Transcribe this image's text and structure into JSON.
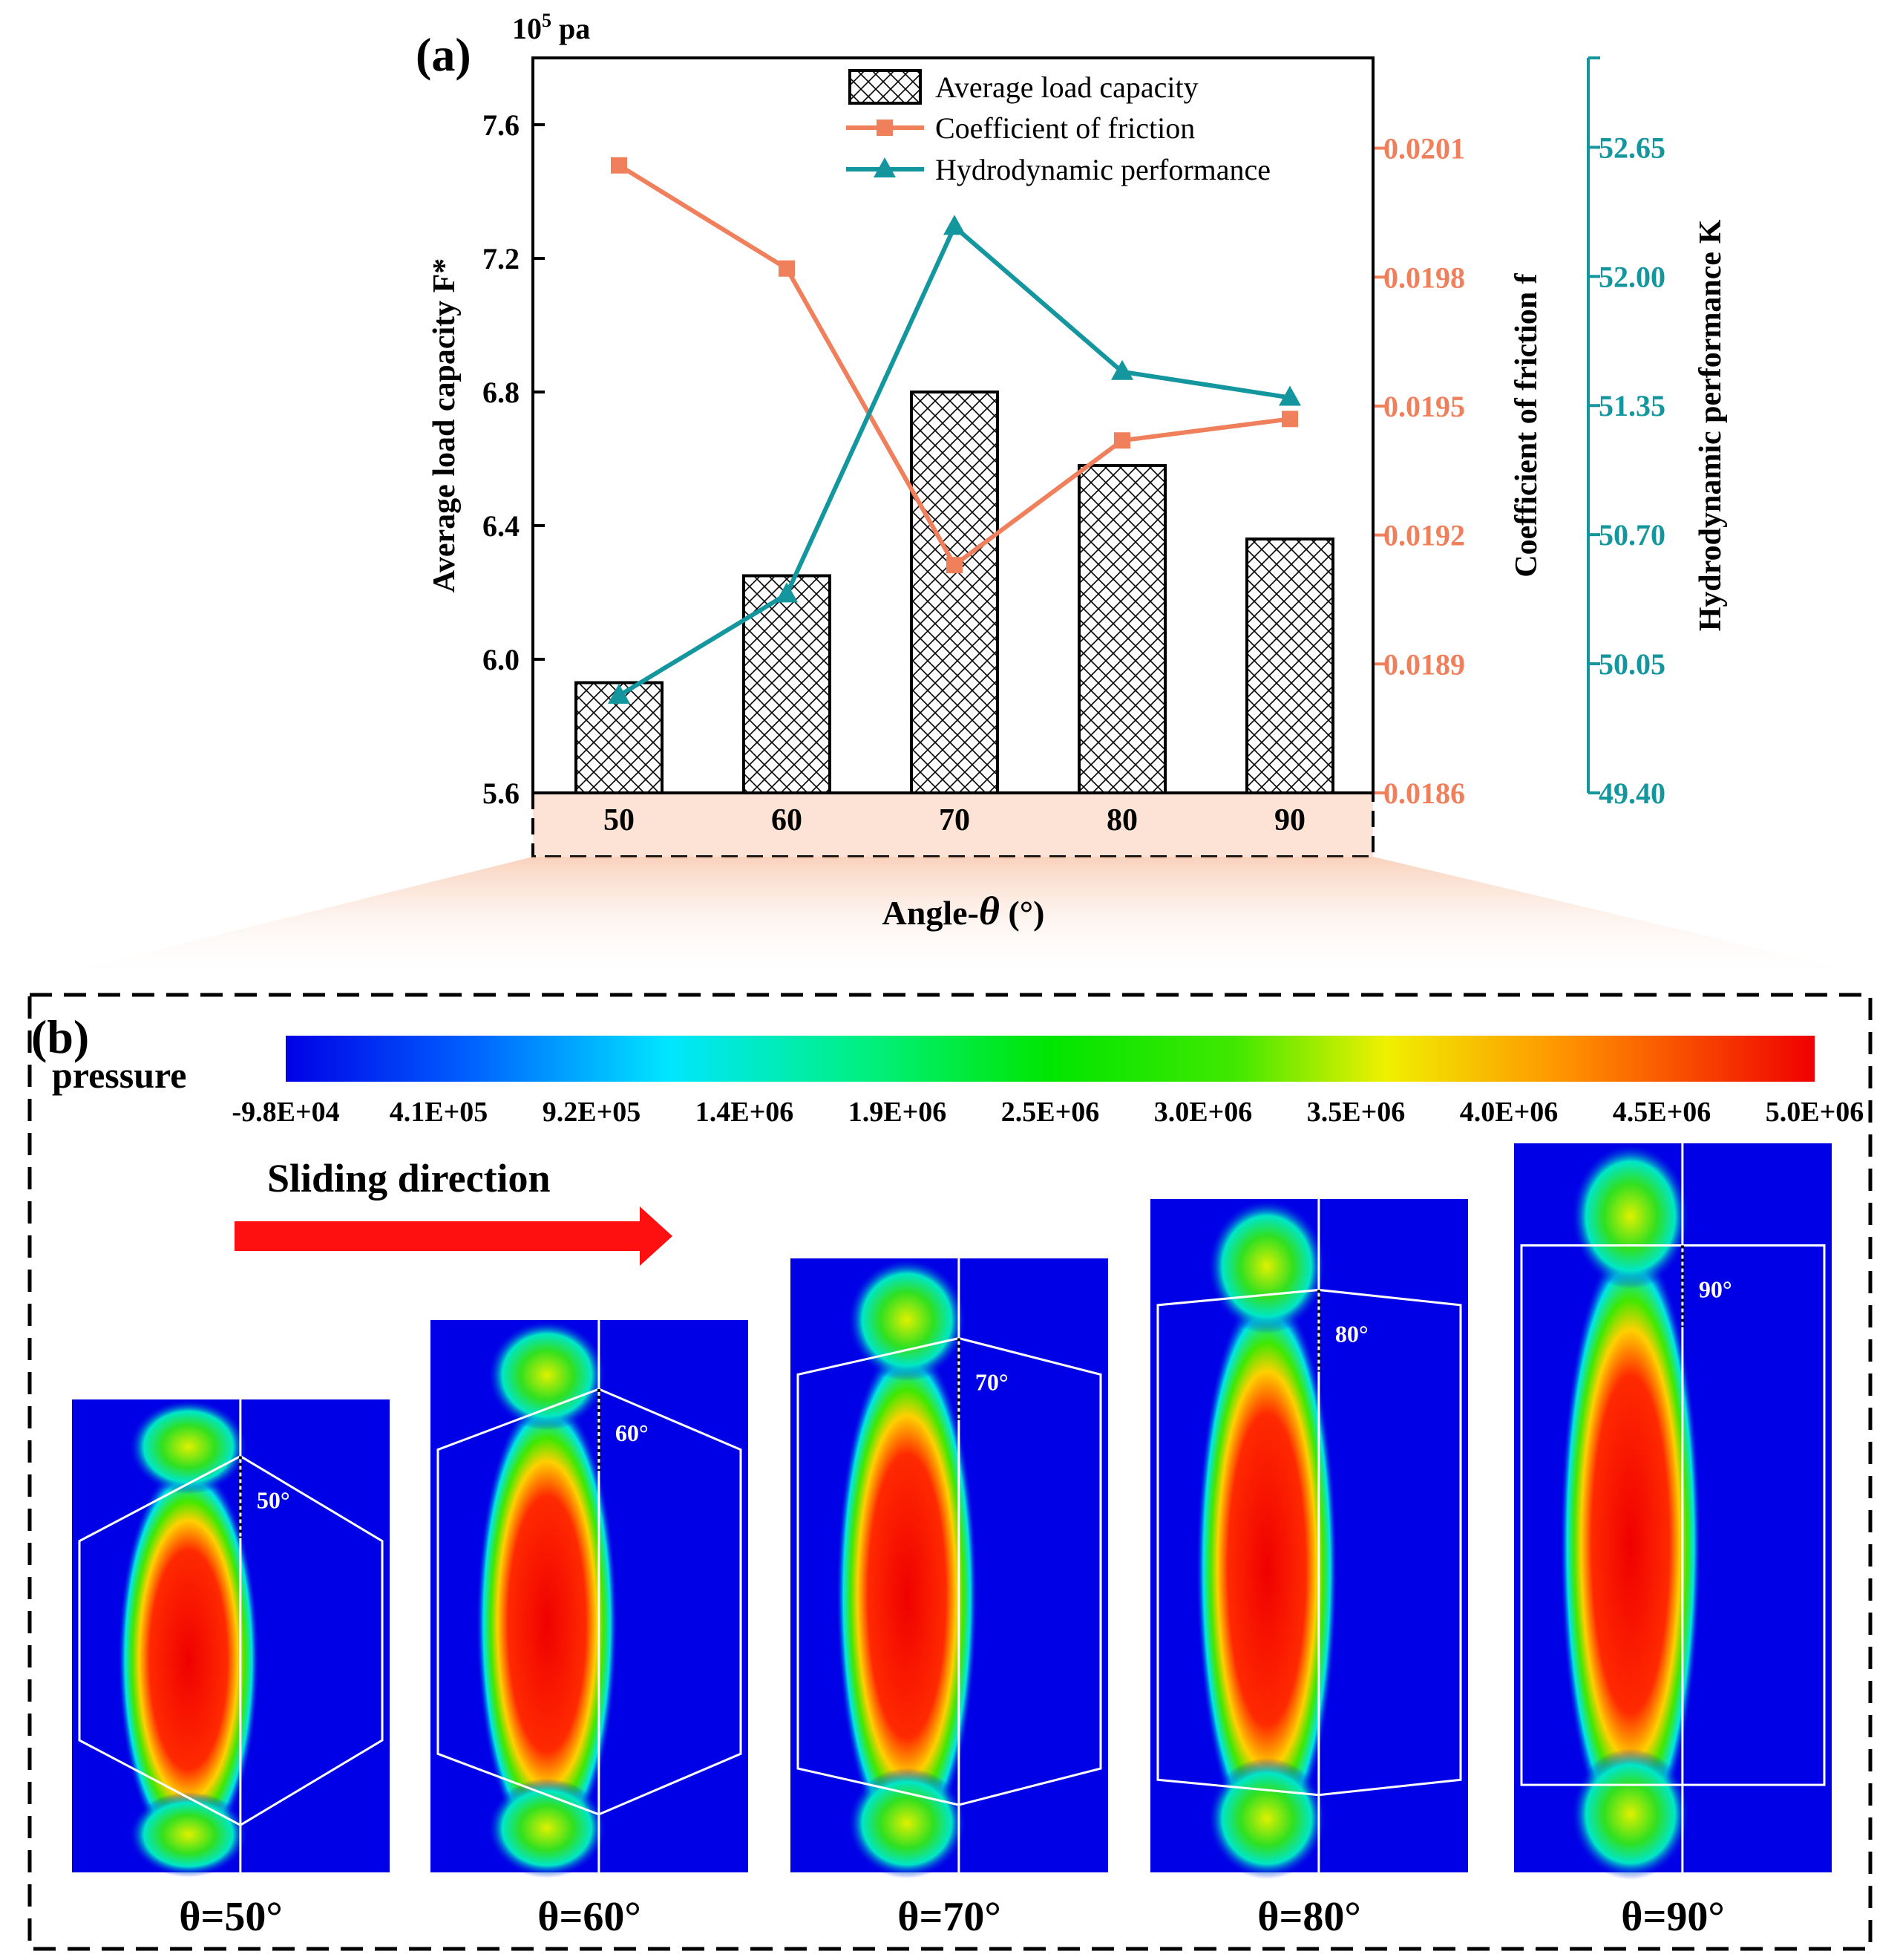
{
  "panel_a": {
    "label": "(a)",
    "unit_label_base": "10",
    "unit_label_exp": "5",
    "unit_label_rest": " pa"
  },
  "panel_b": {
    "label": "(b)",
    "colorbar_title": "pressure",
    "colorbar_ticks": [
      "-9.8E+04",
      "4.1E+05",
      "9.2E+05",
      "1.4E+06",
      "1.9E+06",
      "2.5E+06",
      "3.0E+06",
      "3.5E+06",
      "4.0E+06",
      "4.5E+06",
      "5.0E+06"
    ],
    "sliding_label": "Sliding direction",
    "cells": [
      {
        "angle_label": "50°",
        "caption": "θ=50°"
      },
      {
        "angle_label": "60°",
        "caption": "θ=60°"
      },
      {
        "angle_label": "70°",
        "caption": "θ=70°"
      },
      {
        "angle_label": "80°",
        "caption": "θ=80°"
      },
      {
        "angle_label": "90°",
        "caption": "θ=90°"
      }
    ]
  },
  "colors": {
    "bar_edge": "#000000",
    "friction": "#F07F5C",
    "hydro": "#14969E",
    "arrow": "#FF1010",
    "band": "#FCE3D5"
  },
  "chart_data": {
    "type": "bar",
    "categories": [
      "50",
      "60",
      "70",
      "80",
      "90"
    ],
    "xlabel_prefix": "Angle-",
    "xlabel_symbol": "θ",
    "xlabel_suffix": " (°)",
    "ylabel": "Average load capacity F*",
    "ylim": [
      5.6,
      7.8
    ],
    "yticks": [
      "5.6",
      "6.0",
      "6.4",
      "6.8",
      "7.2",
      "7.6"
    ],
    "y2label": "Coefficient of friction f",
    "y2lim": [
      0.0186,
      0.02031
    ],
    "y2ticks": [
      "0.0186",
      "0.0189",
      "0.0192",
      "0.0195",
      "0.0198",
      "0.0201"
    ],
    "y3label": "Hydrodynamic performance K",
    "y3lim": [
      49.4,
      53.1
    ],
    "y3ticks": [
      "49.40",
      "50.05",
      "50.70",
      "51.35",
      "52.00",
      "52.65"
    ],
    "grid": false,
    "legend_position": "top-right",
    "series": [
      {
        "name": "Average load capacity",
        "type": "bar",
        "axis": "left",
        "values": [
          5.93,
          6.25,
          6.8,
          6.58,
          6.36
        ]
      },
      {
        "name": "Coefficient of friction",
        "type": "line",
        "axis": "right",
        "marker": "square",
        "values": [
          0.02006,
          0.01982,
          0.01913,
          0.01942,
          0.01947
        ]
      },
      {
        "name": "Hydrodynamic performance",
        "type": "line",
        "axis": "right-outer",
        "marker": "triangle",
        "values": [
          49.89,
          50.4,
          52.25,
          51.52,
          51.39
        ]
      }
    ]
  }
}
